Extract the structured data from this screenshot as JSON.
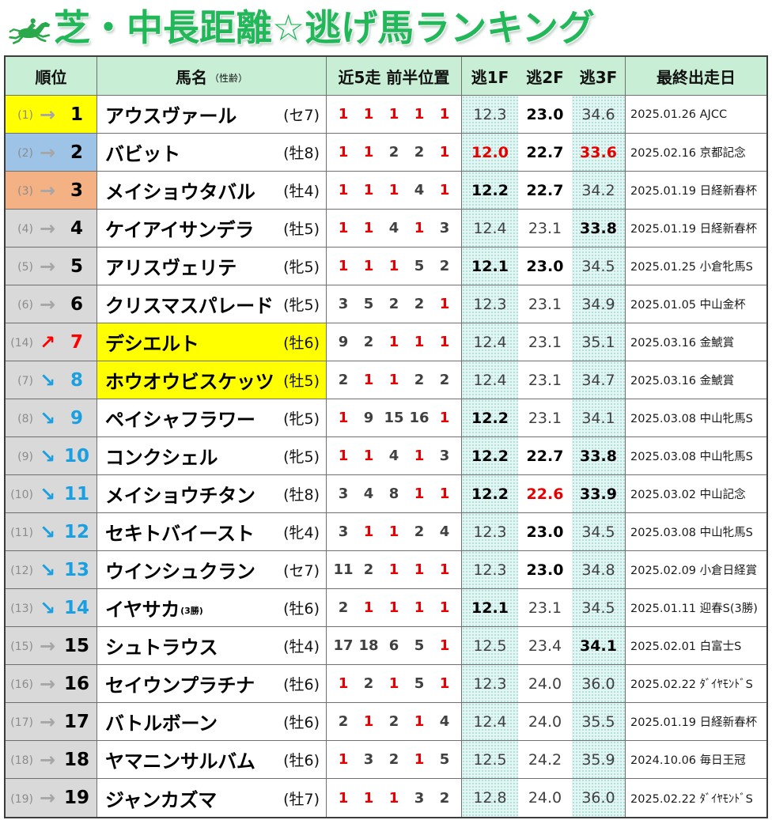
{
  "title": "芝・中長距離☆逃げ馬ランキング",
  "title_icon": "horse-racing-icon",
  "colors": {
    "title": "#22b85a",
    "icon": "#2aa84c",
    "header_bg": "#c8efd5",
    "rank_cell_default": "#d9d9d9",
    "arrow_same": "#a6a6a6",
    "arrow_up": "#ff0000",
    "arrow_down": "#1a9fe0",
    "rank_same": "#000000",
    "position_first": "#e60000",
    "position_other": "#404040",
    "time_normal": "#404040",
    "time_emphasis": "#000000",
    "time_best": "#e60000"
  },
  "header": {
    "rank": "順位",
    "name": "馬名",
    "name_sub": "（性齢）",
    "recent5": "近5走 前半位置",
    "f1": "逃1F",
    "f2": "逃2F",
    "f3": "逃3F",
    "last_race": "最終出走日"
  },
  "rows": [
    {
      "prev": "(1)",
      "arrow": "→",
      "rank": "1",
      "rank_bg": "#ffff00",
      "name": "アウスヴァール",
      "sex_age": "(セ7)",
      "positions": [
        "1",
        "1",
        "1",
        "1",
        "1"
      ],
      "f1": {
        "value": "12.3"
      },
      "f2": {
        "value": "23.0",
        "color": "#000000"
      },
      "f3": {
        "value": "34.6"
      },
      "last_race": "2025.01.26 AJCC"
    },
    {
      "prev": "(2)",
      "arrow": "→",
      "rank": "2",
      "rank_bg": "#9dc3e6",
      "name": "バビット",
      "sex_age": "(牡8)",
      "positions": [
        "1",
        "1",
        "2",
        "2",
        "1"
      ],
      "f1": {
        "value": "12.0",
        "color": "#e60000"
      },
      "f2": {
        "value": "22.7",
        "color": "#000000"
      },
      "f3": {
        "value": "33.6",
        "color": "#e60000"
      },
      "last_race": "2025.02.16 京都記念"
    },
    {
      "prev": "(3)",
      "arrow": "→",
      "rank": "3",
      "rank_bg": "#f4b183",
      "name": "メイショウタバル",
      "sex_age": "(牡4)",
      "positions": [
        "1",
        "1",
        "1",
        "4",
        "1"
      ],
      "f1": {
        "value": "12.2",
        "color": "#000000"
      },
      "f2": {
        "value": "22.7",
        "color": "#000000"
      },
      "f3": {
        "value": "34.2"
      },
      "last_race": "2025.01.19 日経新春杯"
    },
    {
      "prev": "(4)",
      "arrow": "→",
      "rank": "4",
      "name": "ケイアイサンデラ",
      "sex_age": "(牡5)",
      "positions": [
        "1",
        "1",
        "4",
        "1",
        "3"
      ],
      "f1": {
        "value": "12.4"
      },
      "f2": {
        "value": "23.1"
      },
      "f3": {
        "value": "33.8",
        "color": "#000000"
      },
      "last_race": "2025.01.19 日経新春杯"
    },
    {
      "prev": "(5)",
      "arrow": "→",
      "rank": "5",
      "name": "アリスヴェリテ",
      "sex_age": "(牝5)",
      "positions": [
        "1",
        "1",
        "1",
        "5",
        "2"
      ],
      "f1": {
        "value": "12.1",
        "color": "#000000"
      },
      "f2": {
        "value": "23.0",
        "color": "#000000"
      },
      "f3": {
        "value": "34.5"
      },
      "last_race": "2025.01.25 小倉牝馬S"
    },
    {
      "prev": "(6)",
      "arrow": "→",
      "rank": "6",
      "name": "クリスマスパレード",
      "sex_age": "(牝5)",
      "positions": [
        "3",
        "5",
        "2",
        "2",
        "1"
      ],
      "f1": {
        "value": "12.3"
      },
      "f2": {
        "value": "23.1"
      },
      "f3": {
        "value": "34.9"
      },
      "last_race": "2025.01.05 中山金杯"
    },
    {
      "prev": "(14)",
      "arrow": "↗",
      "rank": "7",
      "name_bg": "#ffff00",
      "name": "デシエルト",
      "sex_age": "(牡6)",
      "positions": [
        "9",
        "2",
        "1",
        "1",
        "1"
      ],
      "f1": {
        "value": "12.4"
      },
      "f2": {
        "value": "23.1"
      },
      "f3": {
        "value": "35.1"
      },
      "last_race": "2025.03.16 金鯱賞"
    },
    {
      "prev": "(7)",
      "arrow": "↘",
      "rank": "8",
      "name_bg": "#ffff00",
      "name": "ホウオウビスケッツ",
      "sex_age": "(牡5)",
      "positions": [
        "2",
        "1",
        "1",
        "2",
        "2"
      ],
      "f1": {
        "value": "12.4"
      },
      "f2": {
        "value": "23.1"
      },
      "f3": {
        "value": "34.7"
      },
      "last_race": "2025.03.16 金鯱賞"
    },
    {
      "prev": "(8)",
      "arrow": "↘",
      "rank": "9",
      "name": "ペイシャフラワー",
      "sex_age": "(牝5)",
      "positions": [
        "1",
        "9",
        "15",
        "16",
        "1"
      ],
      "f1": {
        "value": "12.2",
        "color": "#000000"
      },
      "f2": {
        "value": "23.1"
      },
      "f3": {
        "value": "34.1"
      },
      "last_race": "2025.03.08 中山牝馬S"
    },
    {
      "prev": "(9)",
      "arrow": "↘",
      "rank": "10",
      "name": "コンクシェル",
      "sex_age": "(牝5)",
      "positions": [
        "1",
        "1",
        "4",
        "1",
        "3"
      ],
      "f1": {
        "value": "12.2",
        "color": "#000000"
      },
      "f2": {
        "value": "22.7",
        "color": "#000000"
      },
      "f3": {
        "value": "33.8",
        "color": "#000000"
      },
      "last_race": "2025.03.08 中山牝馬S"
    },
    {
      "prev": "(10)",
      "arrow": "↘",
      "rank": "11",
      "name": "メイショウチタン",
      "sex_age": "(牡8)",
      "positions": [
        "3",
        "4",
        "8",
        "1",
        "1"
      ],
      "f1": {
        "value": "12.2",
        "color": "#000000"
      },
      "f2": {
        "value": "22.6",
        "color": "#e60000"
      },
      "f3": {
        "value": "33.9",
        "color": "#000000"
      },
      "last_race": "2025.03.02 中山記念"
    },
    {
      "prev": "(11)",
      "arrow": "↘",
      "rank": "12",
      "name": "セキトバイースト",
      "sex_age": "(牝4)",
      "positions": [
        "3",
        "1",
        "1",
        "2",
        "4"
      ],
      "f1": {
        "value": "12.3"
      },
      "f2": {
        "value": "23.0",
        "color": "#000000"
      },
      "f3": {
        "value": "34.5"
      },
      "last_race": "2025.03.08 中山牝馬S"
    },
    {
      "prev": "(12)",
      "arrow": "↘",
      "rank": "13",
      "name": "ウインシュクラン",
      "sex_age": "(セ7)",
      "positions": [
        "11",
        "2",
        "1",
        "1",
        "1"
      ],
      "f1": {
        "value": "12.3"
      },
      "f2": {
        "value": "23.0",
        "color": "#000000"
      },
      "f3": {
        "value": "34.8"
      },
      "last_race": "2025.02.09 小倉日経賞"
    },
    {
      "prev": "(13)",
      "arrow": "↘",
      "rank": "14",
      "name": "イヤサカ",
      "name_note": "(3勝)",
      "sex_age": "(牡6)",
      "positions": [
        "2",
        "1",
        "1",
        "1",
        "1"
      ],
      "f1": {
        "value": "12.1",
        "color": "#000000"
      },
      "f2": {
        "value": "23.1"
      },
      "f3": {
        "value": "34.5"
      },
      "last_race": "2025.01.11 迎春S(3勝)"
    },
    {
      "prev": "(15)",
      "arrow": "→",
      "rank": "15",
      "name": "シュトラウス",
      "sex_age": "(牡4)",
      "positions": [
        "17",
        "18",
        "6",
        "5",
        "1"
      ],
      "f1": {
        "value": "12.5"
      },
      "f2": {
        "value": "23.4"
      },
      "f3": {
        "value": "34.1",
        "color": "#000000"
      },
      "last_race": "2025.02.01 白富士S"
    },
    {
      "prev": "(16)",
      "arrow": "→",
      "rank": "16",
      "name": "セイウンプラチナ",
      "sex_age": "(牡6)",
      "positions": [
        "1",
        "2",
        "1",
        "5",
        "1"
      ],
      "f1": {
        "value": "12.3"
      },
      "f2": {
        "value": "24.0"
      },
      "f3": {
        "value": "36.0"
      },
      "last_race": "2025.02.22 ﾀﾞｲﾔﾓﾝﾄﾞS"
    },
    {
      "prev": "(17)",
      "arrow": "→",
      "rank": "17",
      "name": "バトルボーン",
      "sex_age": "(牡6)",
      "positions": [
        "2",
        "1",
        "2",
        "1",
        "4"
      ],
      "f1": {
        "value": "12.4"
      },
      "f2": {
        "value": "24.0"
      },
      "f3": {
        "value": "35.5"
      },
      "last_race": "2025.01.19 日経新春杯"
    },
    {
      "prev": "(18)",
      "arrow": "→",
      "rank": "18",
      "name": "ヤマニンサルバム",
      "sex_age": "(牡6)",
      "positions": [
        "1",
        "3",
        "2",
        "1",
        "5"
      ],
      "f1": {
        "value": "12.5"
      },
      "f2": {
        "value": "24.2"
      },
      "f3": {
        "value": "35.9"
      },
      "last_race": "2024.10.06 毎日王冠"
    },
    {
      "prev": "(19)",
      "arrow": "→",
      "rank": "19",
      "name": "ジャンカズマ",
      "sex_age": "(牡7)",
      "positions": [
        "1",
        "1",
        "1",
        "3",
        "2"
      ],
      "f1": {
        "value": "12.8"
      },
      "f2": {
        "value": "24.0"
      },
      "f3": {
        "value": "36.0"
      },
      "last_race": "2025.02.22 ﾀﾞｲﾔﾓﾝﾄﾞS"
    }
  ]
}
